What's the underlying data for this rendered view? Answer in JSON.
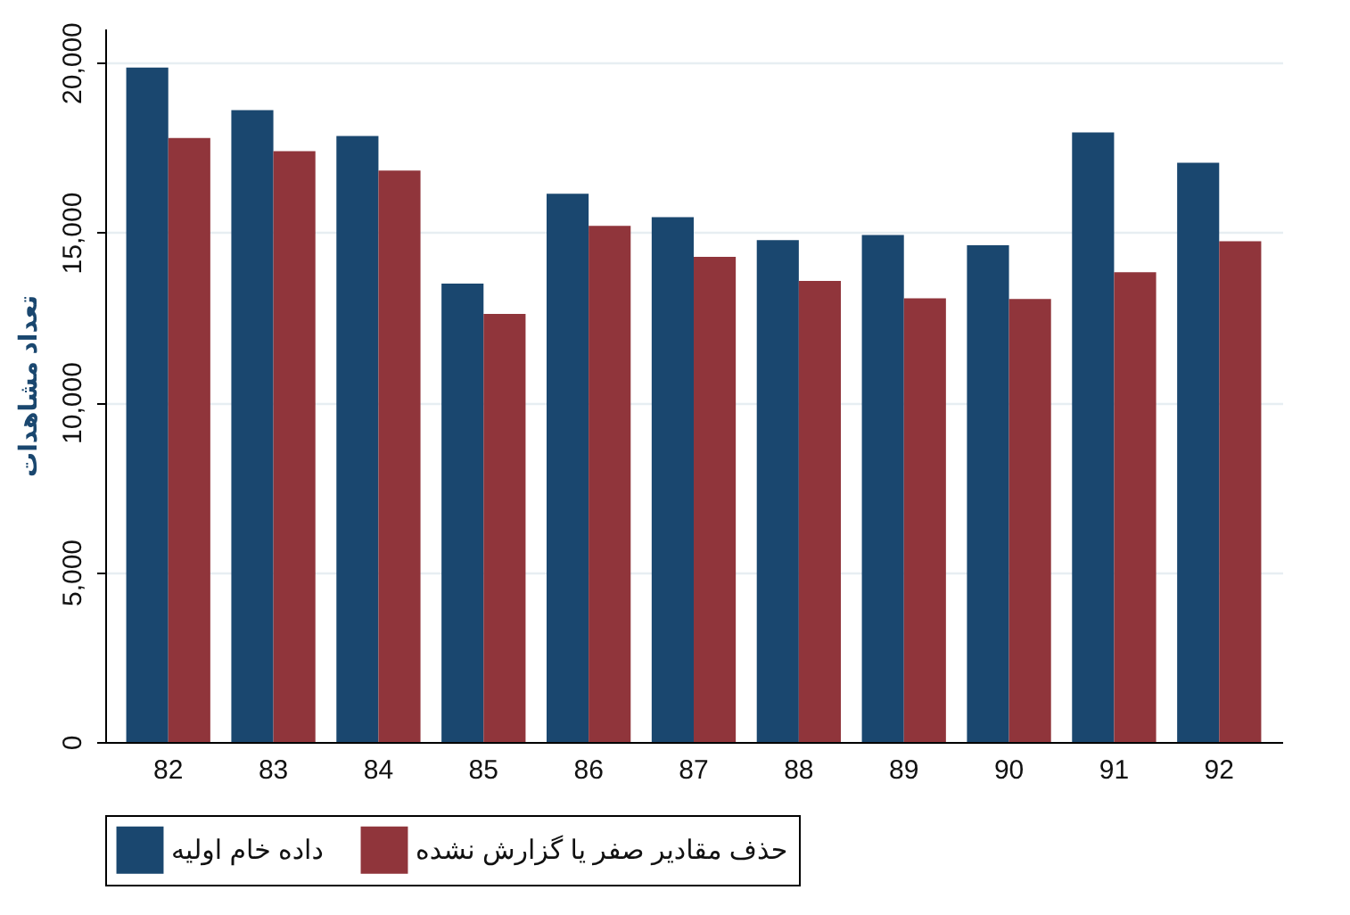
{
  "chart_data": {
    "type": "bar",
    "ylabel": "تعداد مشاهدات",
    "categories": [
      "82",
      "83",
      "84",
      "85",
      "86",
      "87",
      "88",
      "89",
      "90",
      "91",
      "92"
    ],
    "series": [
      {
        "name": "داده خام اولیه",
        "color": "#1a476f",
        "values": [
          19850,
          18600,
          17840,
          13490,
          16140,
          15450,
          14770,
          14920,
          14620,
          17940,
          17050
        ]
      },
      {
        "name": "حذف مقادیر صفر یا گزارش نشده",
        "color": "#90353b",
        "values": [
          17780,
          17390,
          16820,
          12600,
          15190,
          14280,
          13570,
          13060,
          13040,
          13830,
          14740
        ]
      }
    ],
    "ylim": [
      0,
      21000
    ],
    "yticks": [
      {
        "value": 0,
        "label": "0"
      },
      {
        "value": 5000,
        "label": "5,000"
      },
      {
        "value": 10000,
        "label": "10,000"
      },
      {
        "value": 15000,
        "label": "15,000"
      },
      {
        "value": 20000,
        "label": "20,000"
      }
    ],
    "grid": "y",
    "legend": "bottom"
  }
}
